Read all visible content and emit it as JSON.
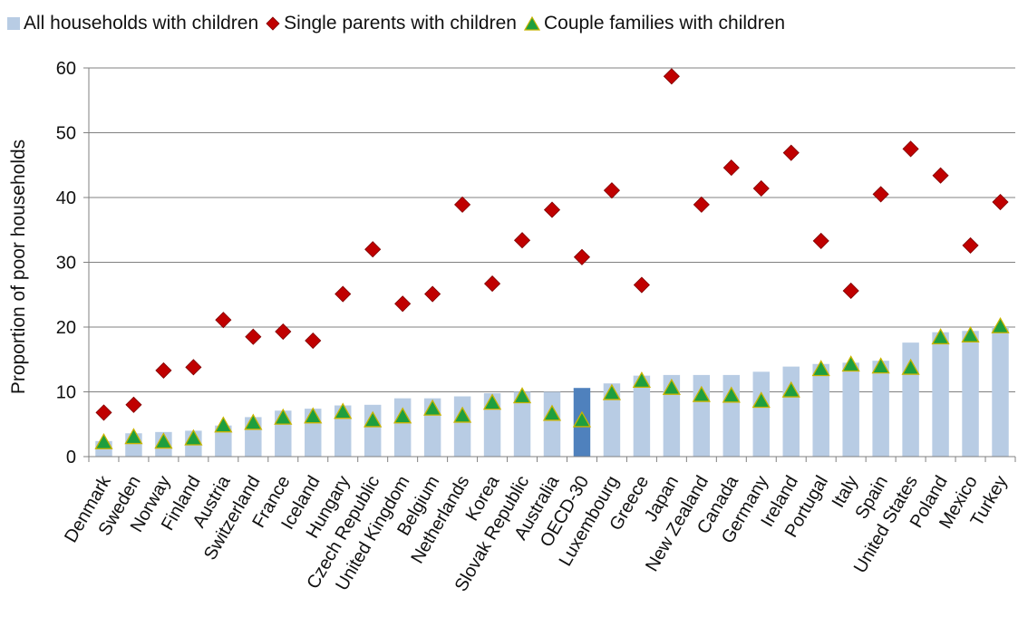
{
  "chart_data": {
    "type": "bar",
    "title": "",
    "xlabel": "",
    "ylabel": "Proportion of poor households",
    "ylim": [
      0,
      60
    ],
    "yticks": [
      0,
      10,
      20,
      30,
      40,
      50,
      60
    ],
    "grid": "horizontal",
    "legend_position": "top-left",
    "categories": [
      "Denmark",
      "Sweden",
      "Norway",
      "Finland",
      "Austria",
      "Switzerland",
      "France",
      "Iceland",
      "Hungary",
      "Czech Republic",
      "United Kingdom",
      "Belgium",
      "Netherlands",
      "Korea",
      "Slovak Republic",
      "Australia",
      "OECD-30",
      "Luxembourg",
      "Greece",
      "Japan",
      "New Zealand",
      "Canada",
      "Germany",
      "Ireland",
      "Portugal",
      "Italy",
      "Spain",
      "United States",
      "Poland",
      "Mexico",
      "Turkey"
    ],
    "highlight_category": "OECD-30",
    "series": [
      {
        "name": "All households with children",
        "kind": "bar",
        "color": "#b8cce4",
        "highlight_color": "#4f81bd",
        "values": [
          2.4,
          3.6,
          3.8,
          4.0,
          4.8,
          6.1,
          7.1,
          7.4,
          7.9,
          8.0,
          9.0,
          9.0,
          9.3,
          9.8,
          10.0,
          10.0,
          10.6,
          11.3,
          12.5,
          12.6,
          12.6,
          12.6,
          13.1,
          13.9,
          14.3,
          14.5,
          14.8,
          17.6,
          19.2,
          19.4,
          20.0
        ]
      },
      {
        "name": "Single parents with children",
        "kind": "diamond",
        "color": "#c00000",
        "values": [
          6.8,
          8.0,
          13.3,
          13.8,
          21.1,
          18.5,
          19.3,
          17.9,
          25.1,
          32.0,
          23.6,
          25.1,
          38.9,
          26.7,
          33.4,
          38.1,
          30.8,
          41.1,
          26.5,
          58.7,
          38.9,
          44.6,
          41.4,
          46.9,
          33.3,
          25.6,
          40.5,
          47.5,
          43.4,
          32.6,
          39.3
        ]
      },
      {
        "name": "Couple families with children",
        "kind": "triangle",
        "color": "#1e9e3e",
        "values": [
          2.2,
          3.0,
          2.3,
          2.8,
          4.8,
          5.2,
          6.0,
          6.2,
          6.9,
          5.6,
          6.2,
          7.4,
          6.3,
          8.3,
          9.3,
          6.6,
          5.6,
          9.8,
          11.7,
          10.6,
          9.5,
          9.4,
          8.6,
          10.2,
          13.5,
          14.2,
          13.9,
          13.7,
          18.4,
          18.7,
          20.1
        ]
      }
    ]
  }
}
